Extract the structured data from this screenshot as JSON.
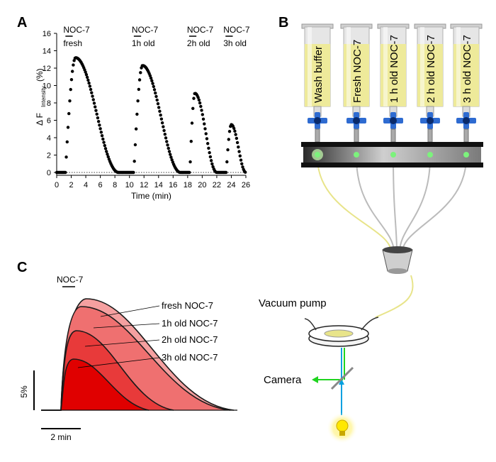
{
  "panels": {
    "a": {
      "letter": "A"
    },
    "b": {
      "letter": "B"
    },
    "c": {
      "letter": "C"
    }
  },
  "chart_data": [
    {
      "type": "scatter",
      "panel": "A",
      "xlabel": "Time (min)",
      "ylabel": "Δ F",
      "ylabel_sub": "Intensity",
      "ylabel_unit": "(%)",
      "xlim": [
        0,
        26
      ],
      "ylim": [
        0,
        16
      ],
      "xticks": [
        "0",
        "2",
        "4",
        "6",
        "8",
        "10",
        "12",
        "14",
        "16",
        "18",
        "20",
        "22",
        "24",
        "26"
      ],
      "yticks": [
        "0",
        "2",
        "4",
        "6",
        "8",
        "10",
        "12",
        "14",
        "16"
      ],
      "baseline": "dotted at 0",
      "stimuli": [
        {
          "line1": "NOC-7",
          "line2": "fresh",
          "start": 1.2,
          "end": 2.2
        },
        {
          "line1": "NOC-7",
          "line2": "1h old",
          "start": 10.6,
          "end": 11.6
        },
        {
          "line1": "NOC-7",
          "line2": "2h old",
          "start": 18.2,
          "end": 19.2
        },
        {
          "line1": "NOC-7",
          "line2": "3h old",
          "start": 23.2,
          "end": 24.2
        }
      ],
      "peaks": [
        {
          "onset": 1.2,
          "peak_t": 2.6,
          "peak": 13.2,
          "end": 8.5
        },
        {
          "onset": 10.6,
          "peak_t": 11.8,
          "peak": 12.3,
          "end": 17.0
        },
        {
          "onset": 18.3,
          "peak_t": 19.0,
          "peak": 9.1,
          "end": 22.0
        },
        {
          "onset": 23.3,
          "peak_t": 24.0,
          "peak": 5.5,
          "end": 26.0
        }
      ]
    },
    {
      "type": "area",
      "panel": "C",
      "stimulus": "NOC-7",
      "series": [
        {
          "name": "fresh NOC-7",
          "color": "#f5a0a0"
        },
        {
          "name": "1h old NOC-7",
          "color": "#ef7070"
        },
        {
          "name": "2h old NOC-7",
          "color": "#e83a3a"
        },
        {
          "name": "3h old NOC-7",
          "color": "#e00000"
        }
      ],
      "scale_y": "5%",
      "scale_x": "2 min"
    }
  ],
  "diagram_b": {
    "syringes": [
      "Wash buffer",
      "Fresh NOC-7",
      "1 h old NOC-7",
      "2 h old NOC-7",
      "3 h old NOC-7"
    ],
    "vacuum_label": "Vacuum pump",
    "camera_label": "Camera",
    "colors": {
      "solution": "#eeea9a",
      "valve": "#2e6bd1",
      "led": "#7cf27c",
      "beam_up": "#00a0e0",
      "beam_side": "#1fd41f",
      "bulb": "#ffe800"
    }
  }
}
